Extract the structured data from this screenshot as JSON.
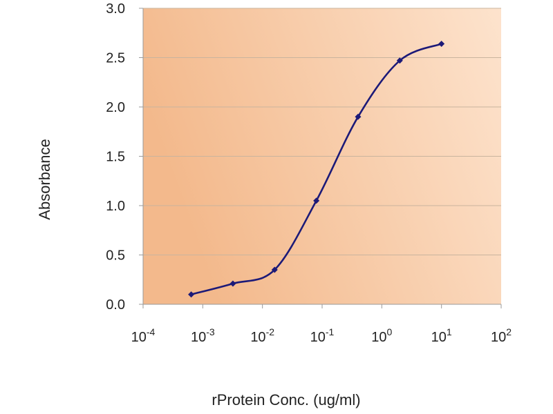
{
  "chart_data": {
    "type": "line",
    "title": "",
    "xlabel": "rProtein Conc. (ug/ml)",
    "ylabel": "Absorbance",
    "x_scale": "log",
    "xlim": [
      0.0001,
      100
    ],
    "ylim": [
      0,
      3.0
    ],
    "x_ticks": [
      {
        "value": 0.0001,
        "base": "10",
        "exp": "-4"
      },
      {
        "value": 0.001,
        "base": "10",
        "exp": "-3"
      },
      {
        "value": 0.01,
        "base": "10",
        "exp": "-2"
      },
      {
        "value": 0.1,
        "base": "10",
        "exp": "-1"
      },
      {
        "value": 1,
        "base": "10",
        "exp": "0"
      },
      {
        "value": 10,
        "base": "10",
        "exp": "1"
      },
      {
        "value": 100,
        "base": "10",
        "exp": "2"
      }
    ],
    "y_ticks": [
      "0.0",
      "0.5",
      "1.0",
      "1.5",
      "2.0",
      "2.5",
      "3.0"
    ],
    "grid": "horizontal",
    "legend": "none",
    "series": [
      {
        "x": [
          0.00064,
          0.0032,
          0.016,
          0.08,
          0.4,
          2,
          10
        ],
        "y": [
          0.1,
          0.21,
          0.35,
          1.05,
          1.9,
          2.47,
          2.64
        ]
      }
    ],
    "colors": {
      "line": "#1c1a78",
      "marker": "#1c1a78",
      "plot_bg_left": "#f3b98c",
      "plot_bg_right": "#fde3cd",
      "gridline": "#c9b49e",
      "axis": "#9a9a9a"
    }
  }
}
